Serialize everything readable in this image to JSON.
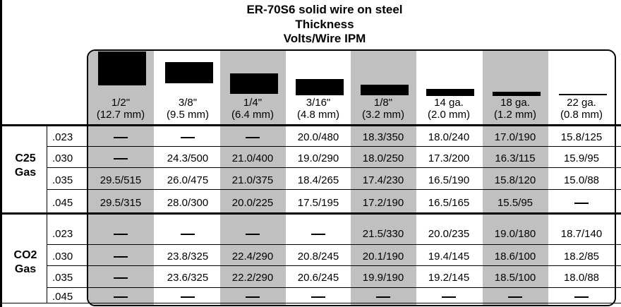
{
  "title": {
    "line1": "ER-70S6 solid wire on steel",
    "line2": "Thickness",
    "line3": "Volts/Wire IPM"
  },
  "columns": [
    {
      "label": "1/2\"",
      "metric": "(12.7 mm)"
    },
    {
      "label": "3/8\"",
      "metric": "(9.5 mm)"
    },
    {
      "label": "1/4\"",
      "metric": "(6.4 mm)"
    },
    {
      "label": "3/16\"",
      "metric": "(4.8 mm)"
    },
    {
      "label": "1/8\"",
      "metric": "(3.2 mm)"
    },
    {
      "label": "14 ga.",
      "metric": "(2.0 mm)"
    },
    {
      "label": "18 ga.",
      "metric": "(1.2 mm)"
    },
    {
      "label": "22 ga.",
      "metric": "(0.8 mm)"
    }
  ],
  "groups": [
    {
      "gas_line1": "C25",
      "gas_line2": "Gas",
      "rows": [
        {
          "wire": ".023",
          "values": [
            "—",
            "—",
            "—",
            "20.0/480",
            "18.3/350",
            "18.0/240",
            "17.0/190",
            "15.8/125"
          ]
        },
        {
          "wire": ".030",
          "values": [
            "—",
            "24.3/500",
            "21.0/400",
            "19.0/290",
            "18.0/250",
            "17.3/200",
            "16.3/115",
            "15.9/95"
          ]
        },
        {
          "wire": ".035",
          "values": [
            "29.5/515",
            "26.0/475",
            "21.0/375",
            "18.4/265",
            "17.4/230",
            "16.5/190",
            "15.8/120",
            "15.0/88"
          ]
        },
        {
          "wire": ".045",
          "values": [
            "29.5/315",
            "28.0/300",
            "20.0/225",
            "17.5/195",
            "17.2/190",
            "16.5/165",
            "15.5/95",
            "—"
          ]
        }
      ]
    },
    {
      "gas_line1": "CO2",
      "gas_line2": "Gas",
      "rows": [
        {
          "wire": ".023",
          "values": [
            "—",
            "—",
            "—",
            "—",
            "21.5/330",
            "20.0/235",
            "19.0/180",
            "18.7/140"
          ]
        },
        {
          "wire": ".030",
          "values": [
            "—",
            "23.8/325",
            "22.4/290",
            "20.8/245",
            "20.1/190",
            "19.4/145",
            "18.6/100",
            "18.2/85"
          ]
        },
        {
          "wire": ".035",
          "values": [
            "—",
            "23.6/325",
            "22.2/290",
            "20.6/245",
            "19.9/190",
            "19.2/145",
            "18.5/100",
            "18.0/88"
          ]
        },
        {
          "wire": ".045",
          "values": [
            "—",
            "—",
            "—",
            "—",
            "—",
            "—",
            "—",
            "—"
          ]
        }
      ]
    }
  ],
  "colors": {
    "shade": "#c0c0c0",
    "ink": "#000000"
  }
}
